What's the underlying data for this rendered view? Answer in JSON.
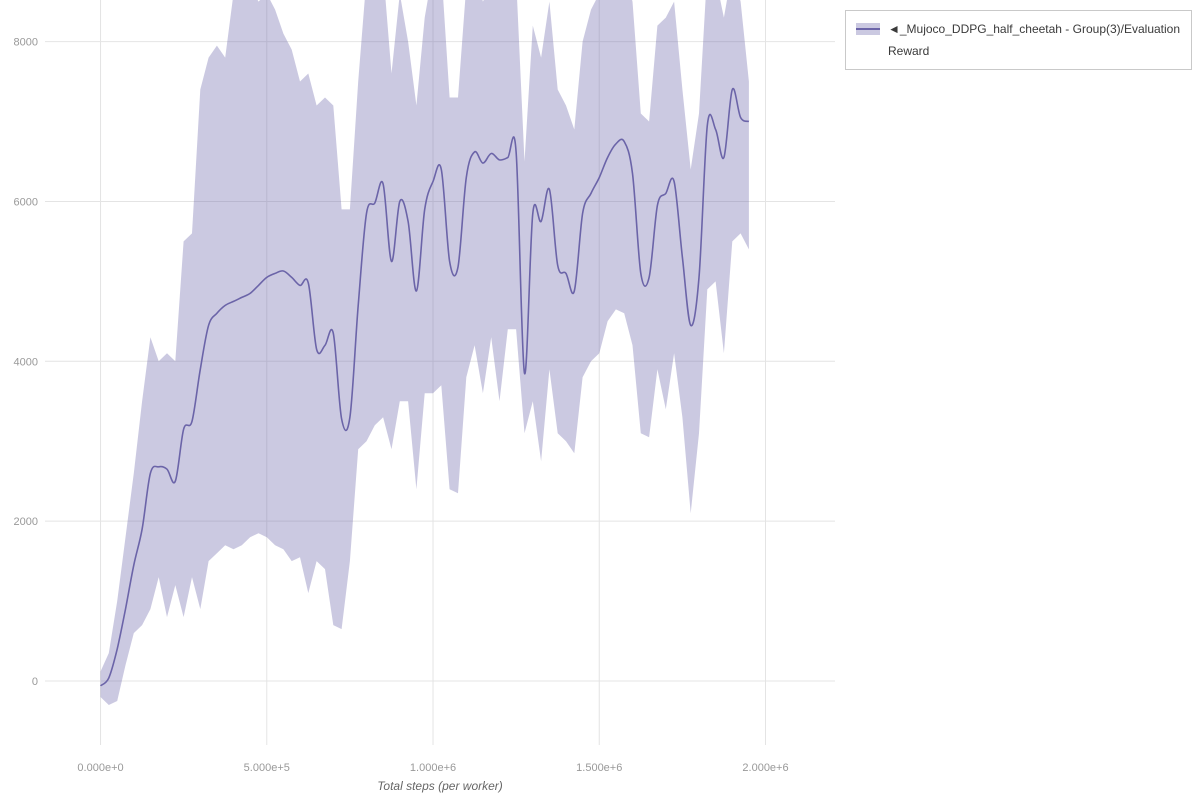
{
  "chart_data": {
    "type": "line",
    "title": "",
    "xlabel": "Total steps (per worker)",
    "ylabel": "",
    "grid": true,
    "legend_position": "top-right-outside",
    "xlim": [
      -167000,
      2209000
    ],
    "ylim": [
      -800,
      8520
    ],
    "x_ticks": {
      "values": [
        0,
        500000,
        1000000,
        1500000,
        2000000
      ],
      "labels": [
        "0.000e+0",
        "5.000e+5",
        "1.000e+6",
        "1.500e+6",
        "2.000e+6"
      ]
    },
    "y_ticks": {
      "values": [
        0,
        2000,
        4000,
        6000,
        8000
      ],
      "labels": [
        "0",
        "2000",
        "4000",
        "6000",
        "8000"
      ]
    },
    "series": [
      {
        "name": "◄_Mujoco_DDPG_half_cheetah - Group(3)/Evaluation Reward",
        "type": "line_with_band",
        "color": "#6b64a8",
        "band_opacity": 0.35,
        "x": [
          0,
          25000,
          50000,
          75000,
          100000,
          125000,
          150000,
          175000,
          200000,
          225000,
          250000,
          275000,
          300000,
          325000,
          350000,
          375000,
          400000,
          425000,
          450000,
          475000,
          500000,
          525000,
          550000,
          575000,
          600000,
          625000,
          650000,
          675000,
          700000,
          725000,
          750000,
          775000,
          800000,
          825000,
          850000,
          875000,
          900000,
          925000,
          950000,
          975000,
          1000000,
          1025000,
          1050000,
          1075000,
          1100000,
          1125000,
          1150000,
          1175000,
          1200000,
          1225000,
          1250000,
          1275000,
          1300000,
          1325000,
          1350000,
          1375000,
          1400000,
          1425000,
          1450000,
          1475000,
          1500000,
          1525000,
          1550000,
          1575000,
          1600000,
          1625000,
          1650000,
          1675000,
          1700000,
          1725000,
          1750000,
          1775000,
          1800000,
          1825000,
          1850000,
          1875000,
          1900000,
          1925000,
          1950000
        ],
        "mean": [
          -60,
          40,
          400,
          900,
          1450,
          1900,
          2600,
          2680,
          2650,
          2500,
          3150,
          3250,
          3900,
          4450,
          4600,
          4700,
          4750,
          4800,
          4850,
          4950,
          5050,
          5100,
          5130,
          5050,
          4950,
          4980,
          4150,
          4200,
          4350,
          3280,
          3300,
          4700,
          5850,
          5980,
          6220,
          5250,
          6000,
          5750,
          4880,
          5900,
          6250,
          6400,
          5250,
          5180,
          6300,
          6620,
          6480,
          6600,
          6520,
          6550,
          6620,
          3850,
          5850,
          5750,
          6150,
          5200,
          5100,
          4880,
          5850,
          6100,
          6300,
          6550,
          6720,
          6750,
          6350,
          5100,
          5050,
          5950,
          6100,
          6250,
          5300,
          4450,
          5050,
          6950,
          6900,
          6550,
          7400,
          7050,
          7000
        ],
        "band_upper": [
          120,
          350,
          1000,
          1800,
          2600,
          3500,
          4300,
          4000,
          4100,
          4000,
          5500,
          5600,
          7400,
          7800,
          7950,
          7800,
          8600,
          8800,
          8700,
          8500,
          8600,
          8400,
          8100,
          7900,
          7500,
          7600,
          7200,
          7300,
          7200,
          5900,
          5900,
          7500,
          8800,
          8800,
          8900,
          7600,
          8600,
          8000,
          7200,
          8300,
          8900,
          8900,
          7300,
          7300,
          8700,
          8900,
          8500,
          8700,
          8600,
          8700,
          8800,
          6500,
          8200,
          7800,
          8500,
          7400,
          7200,
          6900,
          8000,
          8400,
          8600,
          8800,
          8900,
          8900,
          8500,
          7100,
          7000,
          8200,
          8300,
          8500,
          7400,
          6400,
          7100,
          8900,
          8800,
          8300,
          8900,
          8500,
          7500
        ],
        "band_lower": [
          -200,
          -300,
          -250,
          200,
          600,
          700,
          900,
          1300,
          800,
          1200,
          800,
          1300,
          900,
          1500,
          1600,
          1700,
          1650,
          1700,
          1800,
          1850,
          1800,
          1700,
          1650,
          1500,
          1550,
          1100,
          1500,
          1400,
          700,
          650,
          1500,
          2900,
          3000,
          3200,
          3300,
          2900,
          3500,
          3500,
          2400,
          3600,
          3600,
          3700,
          2400,
          2350,
          3800,
          4200,
          3600,
          4300,
          3500,
          4400,
          4400,
          3100,
          3500,
          2750,
          3900,
          3100,
          3000,
          2850,
          3800,
          4000,
          4100,
          4500,
          4650,
          4600,
          4200,
          3100,
          3050,
          3900,
          3400,
          4100,
          3300,
          2100,
          3100,
          4900,
          5000,
          4100,
          5500,
          5600,
          5400
        ]
      }
    ]
  }
}
